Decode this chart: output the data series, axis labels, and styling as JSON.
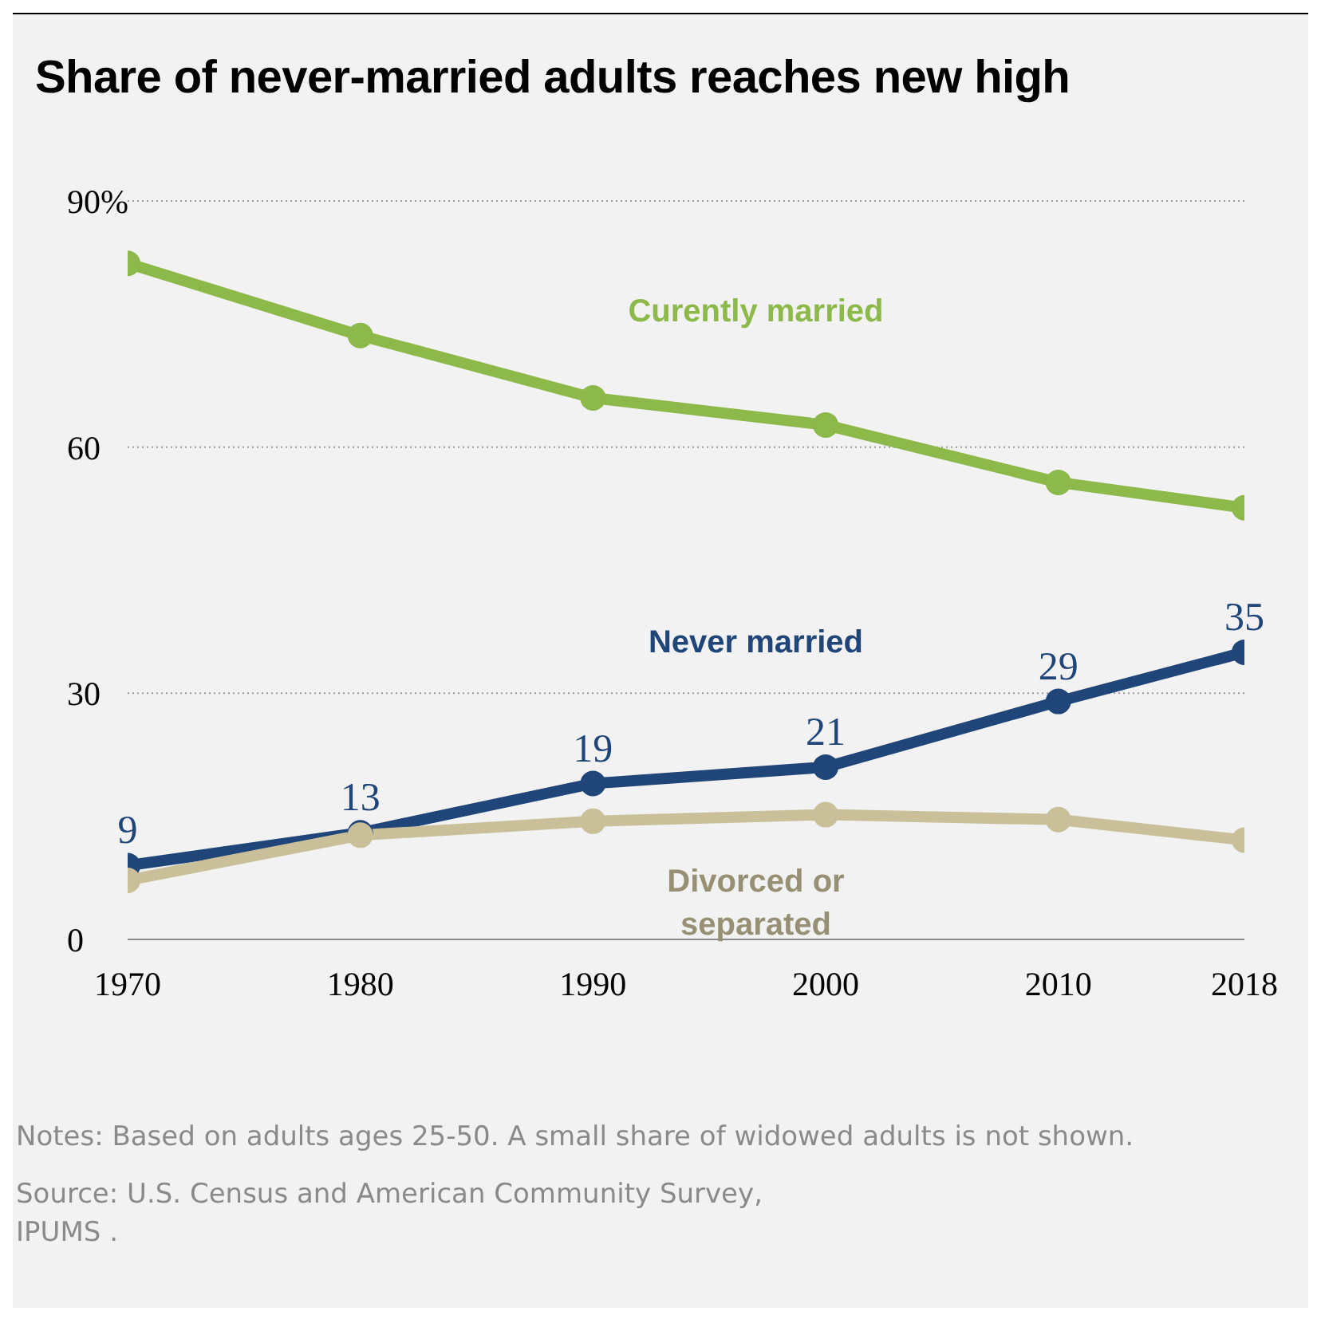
{
  "chart_data": {
    "type": "line",
    "title": "Share of never-married adults reaches new high",
    "x": [
      1970,
      1980,
      1990,
      2000,
      2010,
      2018
    ],
    "series": [
      {
        "name": "Curently married",
        "color": "#8db84a",
        "values": [
          82.4,
          73.6,
          66,
          62.7,
          55.7,
          52.6
        ]
      },
      {
        "name": "Never married",
        "color": "#1f4579",
        "values": [
          9,
          13,
          19,
          21,
          29,
          35
        ],
        "value_labels": [
          "9",
          "13",
          "19",
          "21",
          "29",
          "35"
        ]
      },
      {
        "name": "Divorced or separated",
        "color": "#c9c09a",
        "values": [
          7.2,
          12.7,
          14.4,
          15.2,
          14.6,
          12.1
        ]
      }
    ],
    "xlim": [
      1970,
      2018
    ],
    "xticks": [
      1970,
      1980,
      1990,
      2000,
      2010,
      2018
    ],
    "ylim": [
      0,
      90
    ],
    "yticks": [
      0,
      30,
      60,
      {
        "value": 90,
        "label": "90%"
      }
    ],
    "grid": "y",
    "marker": "circle",
    "line_style": "solid",
    "annotations": [
      "Notes: Based on adults ages 25-50. A small share of widowed adults is not shown.",
      "Source: U.S. Census and American Community Survey, IPUMS ."
    ]
  }
}
